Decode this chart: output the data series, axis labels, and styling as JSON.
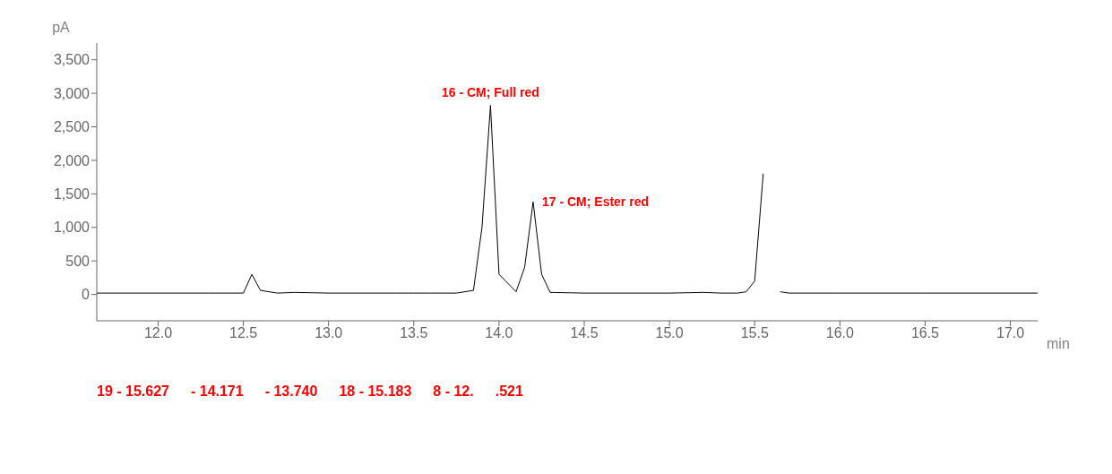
{
  "chart_data": {
    "type": "line",
    "ylabel": "pA",
    "xlabel": "min",
    "color": "#000000",
    "x": [
      11.64,
      12.3,
      12.5,
      12.55,
      12.6,
      12.7,
      12.8,
      13.0,
      13.2,
      13.4,
      13.5,
      13.6,
      13.75,
      13.85,
      13.9,
      13.95,
      14.0,
      14.1,
      14.15,
      14.2,
      14.25,
      14.3,
      14.5,
      15.0,
      15.2,
      15.3,
      15.4,
      15.45,
      15.5,
      15.55,
      15.6,
      15.63,
      15.65,
      15.7,
      16.0,
      16.5,
      17.16
    ],
    "values": [
      20,
      20,
      20,
      300,
      60,
      20,
      30,
      20,
      20,
      20,
      20,
      20,
      20,
      60,
      1000,
      2820,
      300,
      40,
      400,
      1380,
      300,
      30,
      20,
      20,
      30,
      20,
      20,
      40,
      200,
      1800,
      null,
      null,
      40,
      20,
      20,
      20,
      20
    ],
    "xlim": [
      11.64,
      17.16
    ],
    "xticks": [
      {
        "value": 12,
        "label": "12.0"
      },
      12.5,
      {
        "value": 13,
        "label": "13.0"
      },
      13.5,
      {
        "value": 14,
        "label": "14.0"
      },
      14.5,
      {
        "value": 15,
        "label": "15.0"
      },
      15.5,
      {
        "value": 16,
        "label": "16.0"
      },
      16.5,
      {
        "value": 17,
        "label": "17.0"
      }
    ],
    "ylim": [
      -393,
      3750
    ],
    "yticks": [
      0,
      500,
      {
        "value": 1000,
        "label": "1,000"
      },
      {
        "value": 1500,
        "label": "1,500"
      },
      {
        "value": 2000,
        "label": "2,000"
      },
      {
        "value": 2500,
        "label": "2,500"
      },
      {
        "value": 3000,
        "label": "3,000"
      },
      {
        "value": 3500,
        "label": "3,500"
      }
    ],
    "annotations": [
      {
        "text": "16 - CM; Full red",
        "x": 13.95,
        "y": 2820
      },
      {
        "text": "17 - CM; Ester red",
        "x": 14.2,
        "y": 1380
      },
      "19 - 15.627",
      "- 14.171",
      "- 13.740",
      "18 - 15.183",
      "8 - 12.",
      ".521"
    ]
  }
}
